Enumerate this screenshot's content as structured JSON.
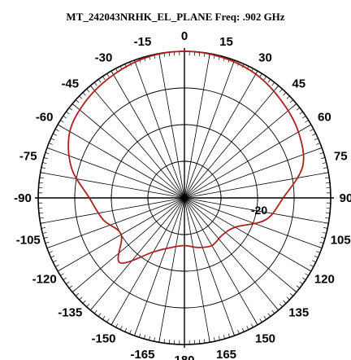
{
  "chart_data": {
    "type": "polar",
    "title": "MT_242043NRHK_EL_PLANE  Freq:  .902 GHz",
    "angle_unit": "deg",
    "angle_labels": [
      "0",
      "15",
      "30",
      "45",
      "60",
      "75",
      "90",
      "105",
      "120",
      "135",
      "150",
      "165",
      "180",
      "-165",
      "-150",
      "-135",
      "-120",
      "-105",
      "-90",
      "-75",
      "-60",
      "-45",
      "-30",
      "-15"
    ],
    "angle_values": [
      0,
      15,
      30,
      45,
      60,
      75,
      90,
      105,
      120,
      135,
      150,
      165,
      180,
      -165,
      -150,
      -135,
      -120,
      -105,
      -90,
      -75,
      -60,
      -45,
      -30,
      -15
    ],
    "radial_unit": "dB",
    "radial_range": [
      -40,
      0
    ],
    "radial_rings": [
      -40,
      -30,
      -20,
      -10,
      0
    ],
    "radial_tick_labels": [
      {
        "value": -20,
        "label": "-20"
      }
    ],
    "series": [
      {
        "color": "#b01e1e",
        "angles": [
          0,
          15,
          30,
          45,
          60,
          75,
          90,
          105,
          120,
          135,
          150,
          165,
          180,
          -165,
          -150,
          -135,
          -120,
          -105,
          -90,
          -75,
          -60,
          -45,
          -30,
          -15
        ],
        "values": [
          0,
          -0.3,
          -1,
          -2.5,
          -4,
          -6.5,
          -13,
          -17,
          -24,
          -25.5,
          -25,
          -26,
          -27,
          -26,
          -23,
          -15,
          -20,
          -17,
          -14,
          -8,
          -3.8,
          -2.2,
          -1.2,
          -0.3
        ]
      }
    ],
    "grid": true
  }
}
